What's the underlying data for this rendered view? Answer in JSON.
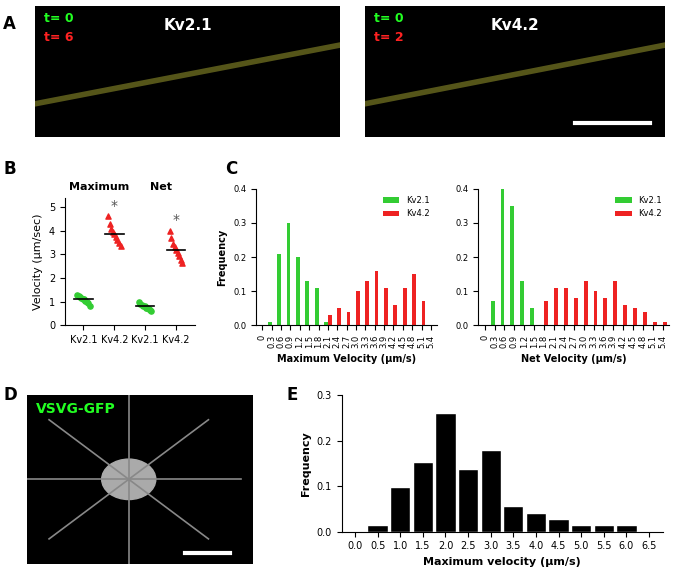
{
  "panel_labels": [
    "A",
    "B",
    "C",
    "D",
    "E"
  ],
  "images": [
    {
      "title": "Kv2.1",
      "title_color": "#ffffff",
      "labels": [
        {
          "text": "t= 0",
          "color": "#22ff22"
        },
        {
          "text": "t= 6",
          "color": "#ff2222"
        }
      ]
    },
    {
      "title": "Kv4.2",
      "title_color": "#ffffff",
      "labels": [
        {
          "text": "t= 0",
          "color": "#22ff22"
        },
        {
          "text": "t= 2",
          "color": "#ff2222"
        }
      ]
    },
    {
      "title": "VSVG-GFP",
      "title_color": "#22ff22",
      "labels": []
    }
  ],
  "chart_data": [
    {
      "type": "strip",
      "categories": [
        "Kv2.1",
        "Kv4.2",
        "Kv2.1",
        "Kv4.2"
      ],
      "group_labels": [
        "Maximum",
        "Net"
      ],
      "ylabel": "Velocity (µm/sec)",
      "ylim": [
        0,
        5.4
      ],
      "yticks": [
        0,
        1,
        2,
        3,
        4,
        5
      ],
      "significance": [
        null,
        "*",
        null,
        "*"
      ],
      "series": [
        {
          "color": "#33cc33",
          "marker": "circle",
          "values": [
            [
              1.3,
              1.25,
              1.2,
              1.15,
              1.1,
              1.1,
              1.05,
              1.0,
              0.95,
              0.8
            ],
            null,
            [
              1.0,
              0.9,
              0.85,
              0.8,
              0.8,
              0.75,
              0.75,
              0.7,
              0.65,
              0.6
            ],
            null
          ],
          "means": [
            1.1,
            null,
            0.8,
            null
          ]
        },
        {
          "color": "#ee2222",
          "marker": "triangle",
          "values": [
            null,
            [
              4.6,
              4.3,
              4.05,
              3.95,
              3.85,
              3.75,
              3.6,
              3.5,
              3.35
            ],
            null,
            [
              4.0,
              3.7,
              3.45,
              3.3,
              3.2,
              3.05,
              2.95,
              2.75,
              2.65
            ]
          ],
          "means": [
            null,
            3.85,
            null,
            3.2
          ]
        }
      ]
    },
    {
      "type": "bar",
      "x": [
        0,
        0.3,
        0.6,
        0.9,
        1.2,
        1.5,
        1.8,
        2.1,
        2.4,
        2.7,
        3,
        3.3,
        3.6,
        3.9,
        4.2,
        4.5,
        4.8,
        5.1,
        5.4
      ],
      "xticks": [
        0,
        0.3,
        0.6,
        0.9,
        1.2,
        1.5,
        1.8,
        2.1,
        2.4,
        2.7,
        {
          "value": 3,
          "label": "3.0"
        },
        3.3,
        3.6,
        3.9,
        4.2,
        4.5,
        4.8,
        5.1,
        5.4
      ],
      "xlim": [
        -0.2,
        5.6
      ],
      "ylim": [
        0,
        0.4
      ],
      "yticks": [
        {
          "value": 0,
          "label": "0.0"
        },
        0.1,
        0.2,
        0.3,
        0.4
      ],
      "xlabel": "Maximum Velocity (µm/s)",
      "ylabel": "Frequency",
      "legend": "upper right",
      "series": [
        {
          "name": "Kv2.1",
          "color": "#33cc33",
          "values": [
            0,
            0.01,
            0.21,
            0.3,
            0.2,
            0.13,
            0.11,
            0.01,
            0,
            0,
            0,
            0,
            0,
            0,
            0,
            0,
            0,
            0,
            0
          ]
        },
        {
          "name": "Kv4.2",
          "color": "#ee2222",
          "values": [
            0,
            0,
            0,
            0,
            0,
            0,
            0,
            0.03,
            0.05,
            0.04,
            0.1,
            0.13,
            0.16,
            0.11,
            0.06,
            0.11,
            0.15,
            0.07,
            0
          ]
        }
      ]
    },
    {
      "type": "bar",
      "x": [
        0,
        0.3,
        0.6,
        0.9,
        1.2,
        1.5,
        1.8,
        2.1,
        2.4,
        2.7,
        3,
        3.3,
        3.6,
        3.9,
        4.2,
        4.5,
        4.8,
        5.1,
        5.4
      ],
      "xticks": [
        0,
        0.3,
        0.6,
        0.9,
        1.2,
        1.5,
        1.8,
        2.1,
        2.4,
        2.7,
        {
          "value": 3,
          "label": "3.0"
        },
        3.3,
        3.6,
        3.9,
        4.2,
        4.5,
        4.8,
        5.1,
        5.4
      ],
      "xlim": [
        -0.2,
        5.6
      ],
      "ylim": [
        0,
        0.4
      ],
      "yticks": [
        {
          "value": 0,
          "label": "0.0"
        },
        0.1,
        0.2,
        0.3,
        0.4
      ],
      "xlabel": "Net Velocity (µm/s)",
      "legend": "upper right",
      "series": [
        {
          "name": "Kv2.1",
          "color": "#33cc33",
          "values": [
            0,
            0.07,
            0.4,
            0.35,
            0.13,
            0.05,
            0,
            0,
            0,
            0,
            0,
            0,
            0,
            0,
            0,
            0,
            0,
            0,
            0
          ]
        },
        {
          "name": "Kv4.2",
          "color": "#ee2222",
          "values": [
            0,
            0,
            0,
            0,
            0,
            0,
            0.07,
            0.11,
            0.11,
            0.08,
            0.13,
            0.1,
            0.08,
            0.13,
            0.06,
            0.05,
            0.04,
            0.01,
            0.01
          ]
        }
      ]
    },
    {
      "type": "bar",
      "x": [
        0,
        0.5,
        1,
        1.5,
        2,
        2.5,
        3,
        3.5,
        4,
        4.5,
        5,
        5.5,
        6,
        6.5
      ],
      "values": [
        0,
        0.015,
        0.097,
        0.152,
        0.26,
        0.138,
        0.18,
        0.056,
        0.042,
        0.028,
        0.014,
        0.014,
        0.014,
        0
      ],
      "color": "#000000",
      "xticks": [
        {
          "value": 0,
          "label": "0.0"
        },
        0.5,
        {
          "value": 1,
          "label": "1.0"
        },
        1.5,
        {
          "value": 2,
          "label": "2.0"
        },
        2.5,
        {
          "value": 3,
          "label": "3.0"
        },
        3.5,
        {
          "value": 4,
          "label": "4.0"
        },
        4.5,
        {
          "value": 5,
          "label": "5.0"
        },
        5.5,
        {
          "value": 6,
          "label": "6.0"
        },
        6.5
      ],
      "xlim": [
        -0.3,
        6.8
      ],
      "ylim": [
        0,
        0.3
      ],
      "yticks": [
        {
          "value": 0,
          "label": "0.0"
        },
        0.1,
        0.2,
        0.3
      ],
      "xlabel": "Maximum velocity (µm/s)",
      "ylabel": "Frequency"
    }
  ]
}
